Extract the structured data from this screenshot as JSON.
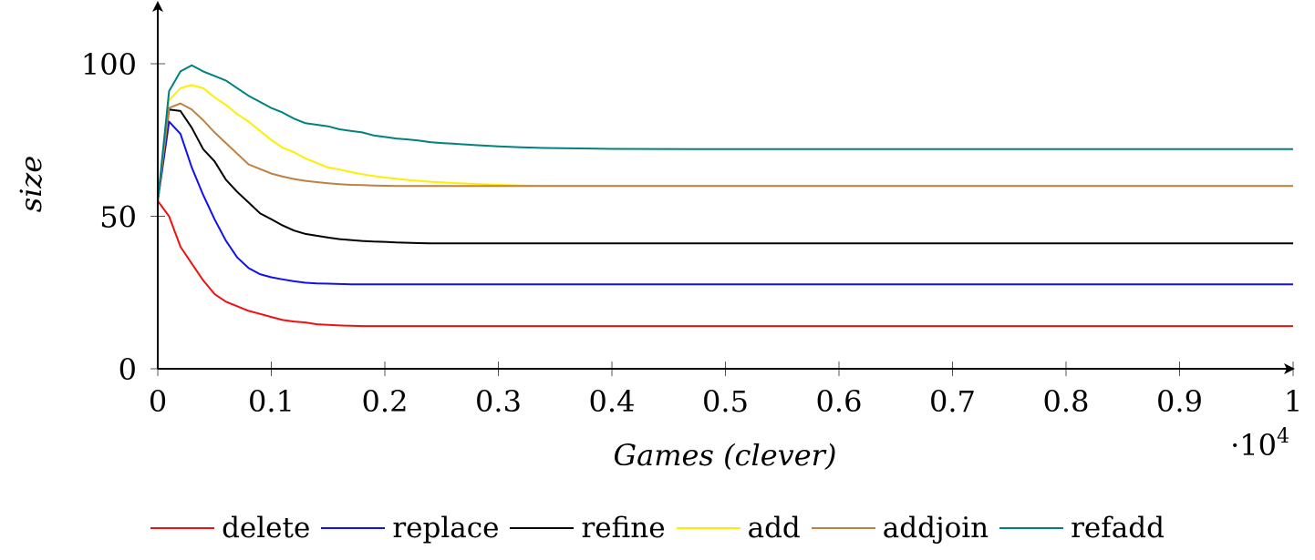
{
  "chart_data": {
    "type": "line",
    "xlabel": "Games (clever)",
    "ylabel": "size",
    "x_scale_note_base": "·10",
    "x_scale_note_exp": "4",
    "xlim": [
      0,
      1
    ],
    "ylim": [
      0,
      100
    ],
    "y_axis_max": 120,
    "x_ticks": [
      0,
      0.1,
      0.2,
      0.3,
      0.4,
      0.5,
      0.6,
      0.7,
      0.8,
      0.9,
      1
    ],
    "x_tick_labels": [
      "0",
      "0.1",
      "0.2",
      "0.3",
      "0.4",
      "0.5",
      "0.6",
      "0.7",
      "0.8",
      "0.9",
      "1"
    ],
    "y_ticks": [
      0,
      50,
      100
    ],
    "y_tick_labels": [
      "0",
      "50",
      "100"
    ],
    "legend_position": "bottom",
    "x": [
      0,
      0.01,
      0.02,
      0.03,
      0.04,
      0.05,
      0.06,
      0.07,
      0.08,
      0.09,
      0.1,
      0.11,
      0.12,
      0.13,
      0.14,
      0.15,
      0.16,
      0.17,
      0.18,
      0.19,
      0.2,
      0.21,
      0.22,
      0.23,
      0.24,
      0.25,
      0.26,
      0.28,
      0.3,
      0.32,
      0.34,
      0.38,
      0.4,
      0.5,
      0.6,
      0.7,
      0.8,
      0.9,
      1
    ],
    "series": [
      {
        "name": "delete",
        "color": "#ee1111",
        "values": [
          55,
          50,
          40,
          34.5,
          29,
          24.5,
          22,
          20.5,
          19,
          18,
          17,
          16,
          15.5,
          15.2,
          14.6,
          14.4,
          14.2,
          14.1,
          14,
          14,
          14,
          14,
          14,
          14,
          14,
          14,
          14,
          14,
          14,
          14,
          14,
          14,
          14,
          14,
          14,
          14,
          14,
          14,
          14
        ]
      },
      {
        "name": "replace",
        "color": "#1111ee",
        "values": [
          55,
          81,
          77,
          66,
          57,
          49,
          42,
          36.5,
          33,
          31,
          30,
          29.3,
          28.7,
          28.2,
          28,
          27.9,
          27.8,
          27.7,
          27.7,
          27.7,
          27.7,
          27.7,
          27.7,
          27.7,
          27.7,
          27.7,
          27.7,
          27.7,
          27.7,
          27.7,
          27.7,
          27.7,
          27.7,
          27.7,
          27.7,
          27.7,
          27.7,
          27.7,
          27.7
        ]
      },
      {
        "name": "refine",
        "color": "#000000",
        "values": [
          55,
          85,
          84.5,
          79,
          72,
          68,
          62,
          58,
          54.5,
          51,
          49,
          47,
          45.3,
          44.2,
          43.6,
          43,
          42.5,
          42.2,
          41.9,
          41.7,
          41.6,
          41.4,
          41.3,
          41.2,
          41.1,
          41.1,
          41.1,
          41.1,
          41.1,
          41.1,
          41.1,
          41.1,
          41.1,
          41.1,
          41.1,
          41.1,
          41.1,
          41.1,
          41.1
        ]
      },
      {
        "name": "add",
        "color": "#ffee00",
        "values": [
          55,
          88,
          92,
          93,
          92,
          89,
          86.5,
          83.5,
          81,
          78,
          75,
          72.5,
          71,
          69,
          67.5,
          66,
          65.3,
          64.5,
          63.8,
          63.2,
          62.7,
          62.3,
          61.9,
          61.6,
          61.3,
          61.1,
          60.9,
          60.6,
          60.3,
          60.1,
          60,
          60,
          60,
          60,
          60,
          60,
          60,
          60,
          60
        ]
      },
      {
        "name": "addjoin",
        "color": "#c08040",
        "values": [
          55,
          85.5,
          87,
          85,
          81.5,
          77.5,
          74,
          70.5,
          67,
          65.5,
          64,
          63,
          62.2,
          61.6,
          61.2,
          60.8,
          60.5,
          60.3,
          60.2,
          60.1,
          60,
          59.9,
          59.9,
          59.9,
          59.9,
          59.9,
          59.9,
          59.9,
          59.9,
          59.9,
          59.9,
          59.9,
          59.9,
          59.9,
          59.9,
          59.9,
          59.9,
          59.9,
          59.9
        ]
      },
      {
        "name": "refadd",
        "color": "#008080",
        "values": [
          55,
          91,
          97.5,
          99.5,
          97.5,
          96,
          94.5,
          92,
          89.5,
          87.5,
          85.5,
          84,
          82,
          80.5,
          80,
          79.5,
          78.5,
          78,
          77.5,
          76.5,
          76,
          75.5,
          75.2,
          74.8,
          74.3,
          74,
          73.8,
          73.3,
          72.9,
          72.6,
          72.4,
          72.2,
          72.1,
          72,
          72,
          72,
          72,
          72,
          72
        ]
      }
    ]
  }
}
